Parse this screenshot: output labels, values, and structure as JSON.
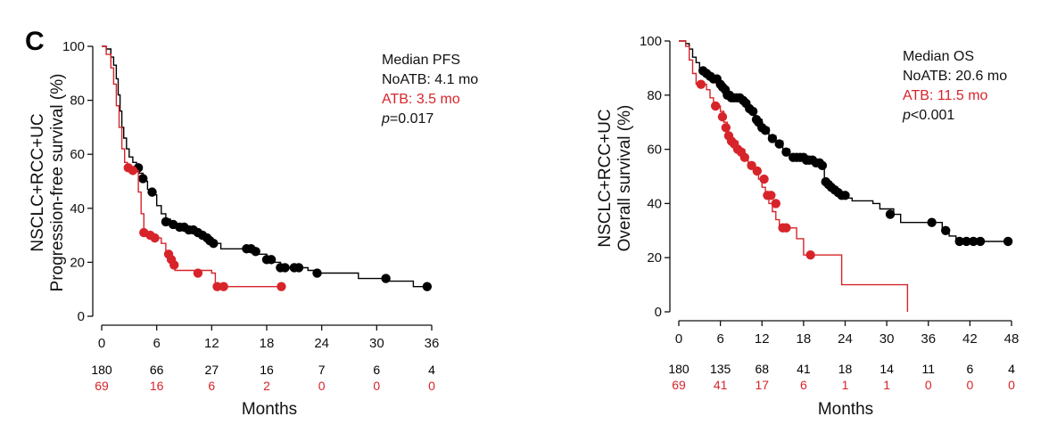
{
  "panel_letter": "C",
  "chart_data": [
    {
      "type": "line",
      "xlabel": "Months",
      "ylabel_lines": [
        "NSCLC+RCC+UC",
        "Progression-free survival (%)"
      ],
      "xlim": [
        0,
        36
      ],
      "ylim": [
        0,
        100
      ],
      "x_ticks": [
        0,
        6,
        12,
        18,
        24,
        30,
        36
      ],
      "y_ticks": [
        0,
        20,
        40,
        60,
        80,
        100
      ],
      "annotation": {
        "title": "Median PFS",
        "line1": "NoATB: 4.1 mo",
        "line2": "ATB: 3.5 mo",
        "p_label": "p",
        "p_value": "=0.017"
      },
      "risk_table": {
        "NoATB": [
          "180",
          "66",
          "27",
          "16",
          "7",
          "6",
          "4"
        ],
        "ATB": [
          "69",
          "16",
          "6",
          "2",
          "0",
          "0",
          "0"
        ]
      },
      "colors": {
        "NoATB": "#000000",
        "ATB": "#d7242a"
      },
      "series": [
        {
          "key": "NoATB",
          "steps": [
            [
              0,
              100
            ],
            [
              0.5,
              99
            ],
            [
              1,
              96
            ],
            [
              1.3,
              93
            ],
            [
              1.6,
              88
            ],
            [
              1.8,
              82
            ],
            [
              2.0,
              76
            ],
            [
              2.2,
              70
            ],
            [
              2.4,
              66
            ],
            [
              2.7,
              62
            ],
            [
              3.0,
              59
            ],
            [
              3.4,
              57
            ],
            [
              3.8,
              55
            ],
            [
              4.1,
              53
            ],
            [
              4.5,
              50
            ],
            [
              5.0,
              47
            ],
            [
              5.5,
              45
            ],
            [
              6.0,
              41
            ],
            [
              6.5,
              38
            ],
            [
              7.0,
              36
            ],
            [
              7.5,
              34
            ],
            [
              8.5,
              33
            ],
            [
              9.5,
              32
            ],
            [
              10.5,
              30
            ],
            [
              11.5,
              28
            ],
            [
              12.5,
              27
            ],
            [
              13.0,
              25
            ],
            [
              16.0,
              25
            ],
            [
              17.0,
              23
            ],
            [
              18.0,
              21
            ],
            [
              18.8,
              20
            ],
            [
              19.5,
              18
            ],
            [
              22.5,
              17
            ],
            [
              23.5,
              16
            ],
            [
              28.0,
              14
            ],
            [
              31.0,
              13
            ],
            [
              34.0,
              11
            ],
            [
              36,
              11
            ]
          ],
          "censored": [
            [
              4.0,
              55
            ],
            [
              4.5,
              51
            ],
            [
              5.5,
              46
            ],
            [
              7.0,
              35
            ],
            [
              7.8,
              34
            ],
            [
              8.5,
              33
            ],
            [
              9.0,
              33
            ],
            [
              9.5,
              32
            ],
            [
              10.0,
              32
            ],
            [
              10.5,
              31
            ],
            [
              11.0,
              30
            ],
            [
              11.5,
              29
            ],
            [
              11.8,
              28
            ],
            [
              12.2,
              27
            ],
            [
              15.8,
              25
            ],
            [
              16.3,
              25
            ],
            [
              16.8,
              24
            ],
            [
              18.0,
              21
            ],
            [
              18.5,
              21
            ],
            [
              19.5,
              18
            ],
            [
              20.0,
              18
            ],
            [
              21.0,
              18
            ],
            [
              21.5,
              18
            ],
            [
              23.5,
              16
            ],
            [
              31.0,
              14
            ],
            [
              35.5,
              11
            ]
          ]
        },
        {
          "key": "ATB",
          "steps": [
            [
              0,
              100
            ],
            [
              0.5,
              97
            ],
            [
              1,
              92
            ],
            [
              1.3,
              86
            ],
            [
              1.6,
              78
            ],
            [
              1.9,
              70
            ],
            [
              2.2,
              62
            ],
            [
              2.5,
              57
            ],
            [
              2.8,
              55
            ],
            [
              3.6,
              54
            ],
            [
              4.0,
              46
            ],
            [
              4.3,
              38
            ],
            [
              4.6,
              31
            ],
            [
              5.2,
              30
            ],
            [
              5.8,
              29
            ],
            [
              6.5,
              27
            ],
            [
              7.0,
              23
            ],
            [
              7.6,
              19
            ],
            [
              8.0,
              17
            ],
            [
              12.0,
              16
            ],
            [
              12.4,
              11
            ],
            [
              19.8,
              11
            ]
          ],
          "censored": [
            [
              2.9,
              55
            ],
            [
              3.4,
              54
            ],
            [
              4.6,
              31
            ],
            [
              5.3,
              30
            ],
            [
              5.8,
              29
            ],
            [
              7.3,
              23
            ],
            [
              7.6,
              21
            ],
            [
              7.9,
              19
            ],
            [
              10.5,
              16
            ],
            [
              12.6,
              11
            ],
            [
              13.3,
              11
            ],
            [
              19.6,
              11
            ]
          ]
        }
      ]
    },
    {
      "type": "line",
      "xlabel": "Months",
      "ylabel_lines": [
        "NSCLC+RCC+UC",
        "Overall survival (%)"
      ],
      "xlim": [
        0,
        48
      ],
      "ylim": [
        0,
        100
      ],
      "x_ticks": [
        0,
        6,
        12,
        18,
        24,
        30,
        36,
        42,
        48
      ],
      "y_ticks": [
        0,
        20,
        40,
        60,
        80,
        100
      ],
      "annotation": {
        "title": "Median OS",
        "line1": "NoATB: 20.6 mo",
        "line2": "ATB: 11.5 mo",
        "p_label": "p",
        "p_value": "<0.001"
      },
      "risk_table": {
        "NoATB": [
          "180",
          "135",
          "68",
          "41",
          "18",
          "14",
          "11",
          "6",
          "4"
        ],
        "ATB": [
          "69",
          "41",
          "17",
          "6",
          "1",
          "1",
          "0",
          "0",
          "0"
        ]
      },
      "colors": {
        "NoATB": "#000000",
        "ATB": "#d7242a"
      },
      "series": [
        {
          "key": "NoATB",
          "steps": [
            [
              0,
              100
            ],
            [
              1.0,
              99
            ],
            [
              1.5,
              97
            ],
            [
              2.0,
              94
            ],
            [
              2.5,
              92
            ],
            [
              3.0,
              90
            ],
            [
              3.5,
              89
            ],
            [
              4.0,
              88
            ],
            [
              5.0,
              86
            ],
            [
              6.0,
              84
            ],
            [
              6.5,
              82
            ],
            [
              7.0,
              80
            ],
            [
              7.5,
              79
            ],
            [
              9.0,
              79
            ],
            [
              9.5,
              78
            ],
            [
              10.0,
              76
            ],
            [
              10.5,
              74
            ],
            [
              11.0,
              71
            ],
            [
              12.0,
              68
            ],
            [
              13.0,
              65
            ],
            [
              14.0,
              63
            ],
            [
              15.0,
              60
            ],
            [
              16.0,
              57
            ],
            [
              19.0,
              56
            ],
            [
              20.0,
              55
            ],
            [
              20.5,
              53
            ],
            [
              21.0,
              48
            ],
            [
              22.0,
              45
            ],
            [
              23.0,
              43
            ],
            [
              24.0,
              42
            ],
            [
              25.0,
              41
            ],
            [
              28.0,
              40
            ],
            [
              29.0,
              38
            ],
            [
              31.0,
              36
            ],
            [
              32.0,
              33
            ],
            [
              37.0,
              33
            ],
            [
              38.0,
              30
            ],
            [
              39.0,
              28
            ],
            [
              40.0,
              26
            ],
            [
              48,
              26
            ]
          ],
          "censored": [
            [
              3.5,
              89
            ],
            [
              4.0,
              88
            ],
            [
              4.5,
              87
            ],
            [
              5.0,
              86
            ],
            [
              5.5,
              86
            ],
            [
              6.0,
              84
            ],
            [
              6.3,
              83
            ],
            [
              6.7,
              82
            ],
            [
              7.0,
              80
            ],
            [
              7.3,
              80
            ],
            [
              7.6,
              79
            ],
            [
              8.0,
              79
            ],
            [
              8.4,
              79
            ],
            [
              8.8,
              79
            ],
            [
              9.3,
              78
            ],
            [
              9.7,
              77
            ],
            [
              10.2,
              75
            ],
            [
              10.7,
              74
            ],
            [
              11.2,
              71
            ],
            [
              11.5,
              70
            ],
            [
              12.0,
              68
            ],
            [
              12.5,
              67
            ],
            [
              13.5,
              64
            ],
            [
              14.5,
              62
            ],
            [
              15.5,
              59
            ],
            [
              16.5,
              57
            ],
            [
              17.0,
              57
            ],
            [
              17.5,
              57
            ],
            [
              18.0,
              57
            ],
            [
              18.4,
              56
            ],
            [
              18.8,
              56
            ],
            [
              19.3,
              56
            ],
            [
              19.8,
              55
            ],
            [
              20.3,
              55
            ],
            [
              20.7,
              54
            ],
            [
              21.2,
              48
            ],
            [
              21.6,
              47
            ],
            [
              22.0,
              46
            ],
            [
              22.5,
              45
            ],
            [
              23.0,
              44
            ],
            [
              23.5,
              43
            ],
            [
              24.0,
              43
            ],
            [
              30.5,
              36
            ],
            [
              36.5,
              33
            ],
            [
              38.5,
              30
            ],
            [
              40.5,
              26
            ],
            [
              41.5,
              26
            ],
            [
              42.5,
              26
            ],
            [
              43.5,
              26
            ],
            [
              47.5,
              26
            ]
          ]
        },
        {
          "key": "ATB",
          "steps": [
            [
              0,
              100
            ],
            [
              1.0,
              98
            ],
            [
              1.5,
              93
            ],
            [
              2.0,
              88
            ],
            [
              2.5,
              84
            ],
            [
              3.5,
              84
            ],
            [
              4.0,
              82
            ],
            [
              4.5,
              79
            ],
            [
              5.0,
              76
            ],
            [
              6.0,
              74
            ],
            [
              6.5,
              70
            ],
            [
              7.0,
              66
            ],
            [
              7.5,
              63
            ],
            [
              8.5,
              60
            ],
            [
              9.5,
              57
            ],
            [
              10.0,
              54
            ],
            [
              11.0,
              52
            ],
            [
              11.5,
              49
            ],
            [
              12.0,
              46
            ],
            [
              12.5,
              43
            ],
            [
              13.0,
              40
            ],
            [
              13.5,
              37
            ],
            [
              14.0,
              34
            ],
            [
              14.5,
              31
            ],
            [
              17.0,
              27
            ],
            [
              18.0,
              21
            ],
            [
              23.0,
              21
            ],
            [
              23.5,
              10
            ],
            [
              33.0,
              10
            ],
            [
              33.0,
              0
            ]
          ],
          "censored": [
            [
              3.2,
              84
            ],
            [
              5.3,
              76
            ],
            [
              6.3,
              72
            ],
            [
              6.8,
              68
            ],
            [
              7.2,
              65
            ],
            [
              7.6,
              63
            ],
            [
              8.0,
              62
            ],
            [
              8.5,
              60
            ],
            [
              9.0,
              59
            ],
            [
              9.5,
              57
            ],
            [
              10.5,
              54
            ],
            [
              11.3,
              52
            ],
            [
              12.3,
              49
            ],
            [
              12.8,
              43
            ],
            [
              13.3,
              43
            ],
            [
              14.0,
              40
            ],
            [
              15.0,
              31
            ],
            [
              15.5,
              31
            ],
            [
              19.0,
              21
            ]
          ]
        }
      ]
    }
  ]
}
